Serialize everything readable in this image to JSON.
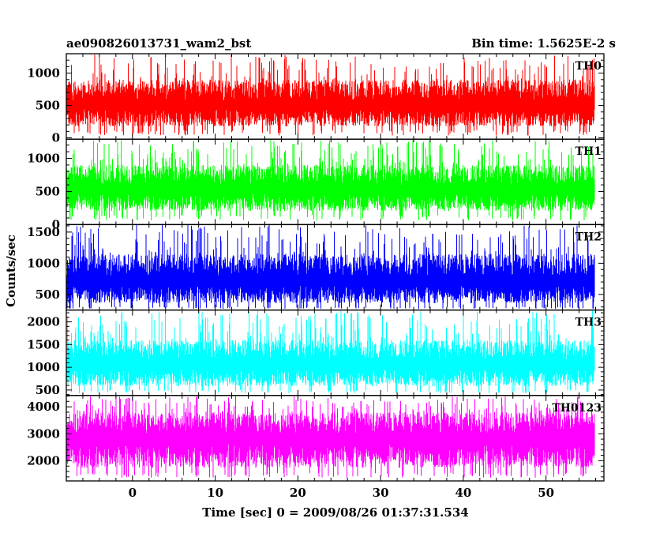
{
  "header": {
    "title": "ae090826013731_wam2_bst",
    "bin_time": "Bin time: 1.5625E-2 s"
  },
  "chart_data": {
    "type": "line",
    "xlabel": "Time [sec] 0 = 2009/08/26 01:37:31.534",
    "ylabel": "Counts/sec",
    "xlim": [
      -8,
      57
    ],
    "x_tick_labels": [
      0,
      10,
      20,
      30,
      40,
      50
    ],
    "x_data_range": [
      -7.9,
      55.9
    ],
    "bin_width": 0.015625,
    "panels": [
      {
        "name": "TH0",
        "color": "#ff0000",
        "ylim": [
          -20,
          1300
        ],
        "yticks": [
          0,
          500,
          1000
        ],
        "level_low": 120,
        "level_mid": 500,
        "level_high": 900,
        "peak": 1290
      },
      {
        "name": "TH1",
        "color": "#00ff00",
        "ylim": [
          0,
          1290
        ],
        "yticks": [
          0,
          500,
          1000
        ],
        "level_low": 150,
        "level_mid": 520,
        "level_high": 900,
        "peak": 1280
      },
      {
        "name": "TH2",
        "color": "#0000ff",
        "ylim": [
          250,
          1620
        ],
        "yticks": [
          500,
          1000,
          1500
        ],
        "level_low": 300,
        "level_mid": 700,
        "level_high": 1150,
        "peak": 1620
      },
      {
        "name": "TH3",
        "color": "#00ffff",
        "ylim": [
          380,
          2260
        ],
        "yticks": [
          500,
          1000,
          1500,
          2000
        ],
        "level_low": 500,
        "level_mid": 1050,
        "level_high": 1600,
        "peak": 2250
      },
      {
        "name": "TH0123",
        "color": "#ff00ff",
        "ylim": [
          1250,
          4420
        ],
        "yticks": [
          2000,
          3000,
          4000
        ],
        "level_low": 1550,
        "level_mid": 2800,
        "level_high": 3800,
        "peak": 4400
      }
    ]
  }
}
